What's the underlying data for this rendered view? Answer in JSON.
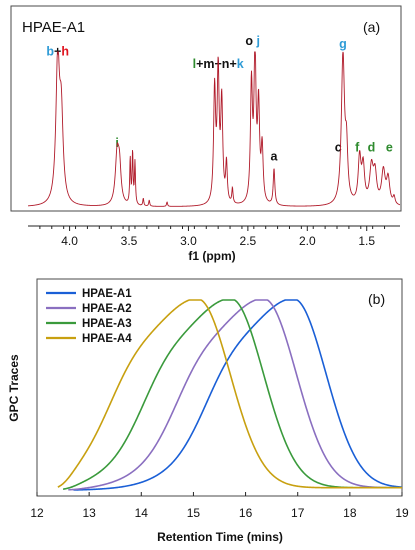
{
  "colors": {
    "nmr": "#b01a2a",
    "blue": "#2e9bd6",
    "red": "#e0141f",
    "green": "#2e8b2e",
    "black": "#111111"
  },
  "chart_data": [
    {
      "type": "line",
      "title": "HPAE-A1",
      "panel": "(a)",
      "xlabel": "f1 (ppm)",
      "ylabel": "",
      "xlim": [
        4.35,
        1.22
      ],
      "x_axis_reversed": true,
      "ticks": [
        "4.0",
        "3.5",
        "3.0",
        "2.5",
        "2.0",
        "1.5"
      ],
      "series": [
        {
          "peaks": [
            {
              "x": 4.1,
              "h": 0.93,
              "w": 0.018
            },
            {
              "x": 4.07,
              "h": 0.55,
              "w": 0.018
            },
            {
              "x": 3.6,
              "h": 0.33,
              "w": 0.018
            },
            {
              "x": 3.58,
              "h": 0.22,
              "w": 0.015
            },
            {
              "x": 3.49,
              "h": 0.3,
              "w": 0.005
            },
            {
              "x": 3.47,
              "h": 0.34,
              "w": 0.005
            },
            {
              "x": 3.45,
              "h": 0.28,
              "w": 0.005
            },
            {
              "x": 3.38,
              "h": 0.05,
              "w": 0.005
            },
            {
              "x": 3.33,
              "h": 0.04,
              "w": 0.005
            },
            {
              "x": 3.18,
              "h": 0.03,
              "w": 0.005
            },
            {
              "x": 2.78,
              "h": 0.74,
              "w": 0.01
            },
            {
              "x": 2.75,
              "h": 0.85,
              "w": 0.01
            },
            {
              "x": 2.72,
              "h": 0.66,
              "w": 0.01
            },
            {
              "x": 2.68,
              "h": 0.26,
              "w": 0.008
            },
            {
              "x": 2.63,
              "h": 0.1,
              "w": 0.006
            },
            {
              "x": 2.47,
              "h": 0.77,
              "w": 0.01
            },
            {
              "x": 2.44,
              "h": 1.0,
              "w": 0.01
            },
            {
              "x": 2.41,
              "h": 0.62,
              "w": 0.01
            },
            {
              "x": 2.38,
              "h": 0.36,
              "w": 0.01
            },
            {
              "x": 2.28,
              "h": 0.24,
              "w": 0.008
            },
            {
              "x": 1.7,
              "h": 0.98,
              "w": 0.016
            },
            {
              "x": 1.67,
              "h": 0.32,
              "w": 0.012
            },
            {
              "x": 1.56,
              "h": 0.3,
              "w": 0.014
            },
            {
              "x": 1.53,
              "h": 0.24,
              "w": 0.014
            },
            {
              "x": 1.46,
              "h": 0.24,
              "w": 0.018
            },
            {
              "x": 1.43,
              "h": 0.19,
              "w": 0.016
            },
            {
              "x": 1.36,
              "h": 0.22,
              "w": 0.018
            },
            {
              "x": 1.32,
              "h": 0.17,
              "w": 0.016
            },
            {
              "x": 1.27,
              "h": 0.05,
              "w": 0.01
            }
          ]
        }
      ],
      "peak_labels": [
        {
          "x": 4.1,
          "h": 0.93,
          "parts": [
            {
              "text": "b",
              "color": "blue"
            },
            {
              "text": "+",
              "color": "black"
            },
            {
              "text": "h",
              "color": "red"
            }
          ]
        },
        {
          "x": 3.6,
          "h": 0.33,
          "parts": [
            {
              "text": "i",
              "color": "green"
            }
          ]
        },
        {
          "x": 2.75,
          "h": 0.85,
          "parts": [
            {
              "text": "l",
              "color": "green"
            },
            {
              "text": "+m+n+",
              "color": "black"
            },
            {
              "text": "k",
              "color": "blue"
            }
          ]
        },
        {
          "x": 2.46,
          "h": 1.0,
          "parts": [
            {
              "text": "o",
              "color": "black"
            },
            {
              "text": "  ",
              "color": "black"
            },
            {
              "text": "j",
              "color": "blue"
            }
          ]
        },
        {
          "x": 2.28,
          "h": 0.24,
          "parts": [
            {
              "text": "a",
              "color": "black"
            }
          ]
        },
        {
          "x": 1.7,
          "h": 0.98,
          "parts": [
            {
              "text": "g",
              "color": "blue"
            }
          ]
        },
        {
          "x": 1.74,
          "h": 0.3,
          "parts": [
            {
              "text": "c",
              "color": "black"
            }
          ]
        },
        {
          "x": 1.58,
          "h": 0.3,
          "parts": [
            {
              "text": "f",
              "color": "green"
            }
          ]
        },
        {
          "x": 1.46,
          "h": 0.3,
          "parts": [
            {
              "text": "d",
              "color": "green"
            }
          ]
        },
        {
          "x": 1.31,
          "h": 0.3,
          "parts": [
            {
              "text": "e",
              "color": "green"
            }
          ]
        }
      ]
    },
    {
      "type": "line",
      "panel": "(b)",
      "xlabel": "Retention Time (mins)",
      "ylabel": "GPC Traces",
      "xlim": [
        12,
        19
      ],
      "ylim": [
        0,
        1
      ],
      "ticks": [
        "12",
        "13",
        "14",
        "15",
        "16",
        "17",
        "18",
        "19"
      ],
      "legend_position": "top-left",
      "series": [
        {
          "name": "HPAE-A1",
          "color": "#1a5fd6",
          "peak_x": 16.92,
          "start": 12.7,
          "end": 19.0
        },
        {
          "name": "HPAE-A2",
          "color": "#8a6fc0",
          "peak_x": 16.35,
          "start": 12.6,
          "end": 19.0
        },
        {
          "name": "HPAE-A3",
          "color": "#3a9a3c",
          "peak_x": 15.72,
          "start": 12.5,
          "end": 19.0
        },
        {
          "name": "HPAE-A4",
          "color": "#c8a010",
          "peak_x": 15.08,
          "start": 12.4,
          "end": 19.0
        }
      ]
    }
  ]
}
